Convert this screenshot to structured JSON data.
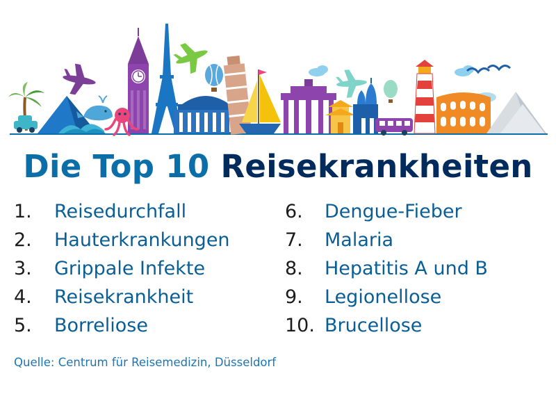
{
  "title": {
    "part1": "Die Top 10",
    "part2": "Reisekrankheiten"
  },
  "list_left": [
    {
      "num": "1.",
      "label": "Reisedurchfall"
    },
    {
      "num": "2.",
      "label": "Hauterkrankungen"
    },
    {
      "num": "3.",
      "label": "Grippale Infekte"
    },
    {
      "num": "4.",
      "label": "Reisekrankheit"
    },
    {
      "num": "5.",
      "label": "Borreliose"
    }
  ],
  "list_right": [
    {
      "num": "6.",
      "label": "Dengue-Fieber"
    },
    {
      "num": "7.",
      "label": "Malaria"
    },
    {
      "num": "8.",
      "label": "Hepatitis A und B"
    },
    {
      "num": "9.",
      "label": "Legionellose"
    },
    {
      "num": "10.",
      "label": "Brucellose"
    }
  ],
  "source": "Quelle: Centrum für Reisemedizin, Düsseldorf",
  "colors": {
    "title_light": "#0b6ea8",
    "title_dark": "#002b5c",
    "list_label": "#0a5e96",
    "source": "#1b75b6"
  },
  "banner_icons": [
    "palm-tree-icon",
    "car-icon",
    "mountain-icon",
    "wave-icon",
    "airplane-icon",
    "whale-icon",
    "big-ben-icon",
    "octopus-icon",
    "eiffel-tower-icon",
    "airplane-icon",
    "bundestag-icon",
    "hot-air-balloon-icon",
    "leaning-tower-of-pisa-icon",
    "sailboat-icon",
    "brandenburg-gate-icon",
    "airplane-icon",
    "cloud-icon",
    "pagoda-icon",
    "onion-dome-church-icon",
    "bus-icon",
    "lighthouse-icon",
    "colosseum-icon",
    "seagull-icon",
    "snowy-mountain-icon"
  ]
}
